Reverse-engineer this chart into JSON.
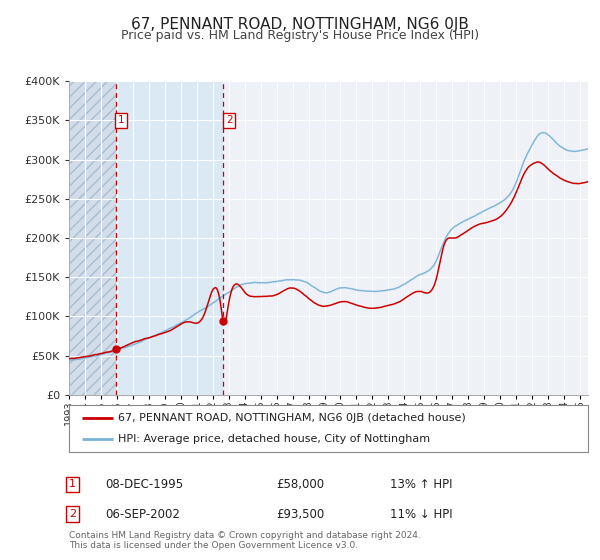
{
  "title": "67, PENNANT ROAD, NOTTINGHAM, NG6 0JB",
  "subtitle": "Price paid vs. HM Land Registry's House Price Index (HPI)",
  "legend_line1": "67, PENNANT ROAD, NOTTINGHAM, NG6 0JB (detached house)",
  "legend_line2": "HPI: Average price, detached house, City of Nottingham",
  "transaction1_date": "08-DEC-1995",
  "transaction1_price": 58000,
  "transaction1_hpi": "13% ↑ HPI",
  "transaction2_date": "06-SEP-2002",
  "transaction2_price": 93500,
  "transaction2_hpi": "11% ↓ HPI",
  "footer": "Contains HM Land Registry data © Crown copyright and database right 2024.\nThis data is licensed under the Open Government Licence v3.0.",
  "hpi_color": "#7ab4d8",
  "price_color": "#cc0000",
  "background_color": "#ffffff",
  "plot_background": "#eef2f8",
  "grid_color": "#ffffff",
  "hatch_color": "#c0d0e0",
  "highlight_color": "#d8e8f4",
  "dashed_line_color": "#cc0000",
  "ylim": [
    0,
    400000
  ],
  "yticks": [
    0,
    50000,
    100000,
    150000,
    200000,
    250000,
    300000,
    350000,
    400000
  ],
  "xlim_start": 1993.0,
  "xlim_end": 2025.5,
  "t1_year": 1995.92,
  "t2_year": 2002.67,
  "hpi_anchors_x": [
    1993.0,
    1994.0,
    1995.0,
    1996.0,
    1997.0,
    1998.0,
    1999.0,
    2000.0,
    2001.0,
    2002.0,
    2003.0,
    2004.0,
    2005.0,
    2006.0,
    2007.0,
    2008.0,
    2009.0,
    2010.0,
    2011.0,
    2012.0,
    2013.0,
    2014.0,
    2015.0,
    2016.0,
    2016.5,
    2017.0,
    2018.0,
    2019.0,
    2020.0,
    2021.0,
    2021.5,
    2022.0,
    2022.5,
    2023.0,
    2023.5,
    2024.0,
    2024.5,
    2025.0,
    2025.5
  ],
  "hpi_anchors_y": [
    44000,
    47000,
    51000,
    56000,
    63000,
    71000,
    80000,
    90000,
    103000,
    116000,
    130000,
    140000,
    141000,
    142000,
    145000,
    140000,
    128000,
    134000,
    132000,
    130000,
    132000,
    140000,
    152000,
    170000,
    195000,
    210000,
    222000,
    232000,
    242000,
    268000,
    295000,
    315000,
    330000,
    328000,
    318000,
    310000,
    307000,
    308000,
    310000
  ],
  "price_anchors_x": [
    1993.0,
    1994.0,
    1995.0,
    1995.92,
    1996.5,
    1997.5,
    1998.5,
    1999.5,
    2000.5,
    2001.5,
    2002.5,
    2002.67,
    2003.0,
    2004.0,
    2005.0,
    2006.0,
    2007.0,
    2008.0,
    2009.0,
    2010.0,
    2011.0,
    2012.0,
    2013.0,
    2014.0,
    2015.0,
    2016.0,
    2016.5,
    2017.0,
    2018.0,
    2019.0,
    2020.0,
    2021.0,
    2021.5,
    2022.0,
    2022.5,
    2023.0,
    2023.5,
    2024.0,
    2024.5,
    2025.0,
    2025.5
  ],
  "price_anchors_y": [
    46000,
    49000,
    53000,
    58000,
    63000,
    70000,
    76000,
    84000,
    93000,
    105000,
    116000,
    93500,
    118000,
    132000,
    126000,
    128000,
    136000,
    122000,
    112000,
    118000,
    114000,
    110000,
    114000,
    122000,
    132000,
    148000,
    192000,
    200000,
    210000,
    218000,
    225000,
    256000,
    280000,
    292000,
    294000,
    286000,
    278000,
    272000,
    268000,
    268000,
    270000
  ]
}
